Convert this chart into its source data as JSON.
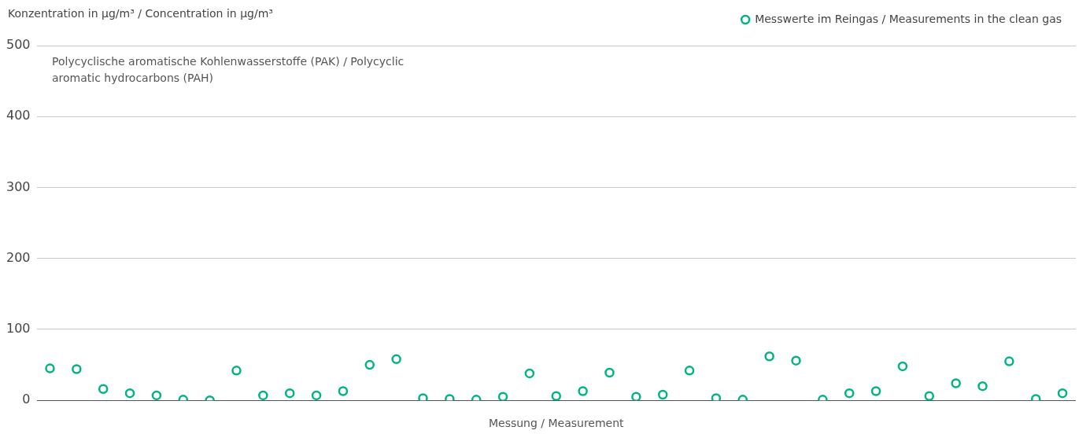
{
  "chart_data": {
    "type": "scatter",
    "title": "Polycyclische aromatische Kohlenwasserstoffe (PAK) / Polycyclic aromatic hydrocarbons (PAH)",
    "ylabel": "Konzentration in µg/m³ / Concentration in µg/m³",
    "xlabel": "Messung / Measurement",
    "categories": [
      null,
      null,
      null,
      null,
      null,
      null,
      null,
      null,
      null,
      null,
      null,
      null,
      null,
      null,
      null,
      null,
      null,
      null,
      null,
      null,
      null,
      null,
      null,
      null,
      null,
      null,
      null,
      null,
      null,
      null,
      null,
      null,
      null,
      null,
      null,
      null,
      null,
      null,
      null
    ],
    "series": [
      {
        "name": "Messwerte im Reingas / Measurements in the clean gas",
        "color": "#00b386",
        "values": [
          45,
          44,
          16,
          10,
          7,
          1,
          0,
          42,
          7,
          10,
          7,
          13,
          50,
          58,
          3,
          2,
          1,
          5,
          38,
          6,
          13,
          39,
          5,
          8,
          42,
          3,
          1,
          62,
          56,
          1,
          10,
          13,
          48,
          6,
          24,
          20,
          55,
          2,
          10
        ]
      }
    ],
    "ylim": [
      0,
      500
    ],
    "yticks": [
      0,
      100,
      200,
      300,
      400,
      500
    ],
    "grid": "y",
    "legend": "top right",
    "marker": "circle"
  }
}
